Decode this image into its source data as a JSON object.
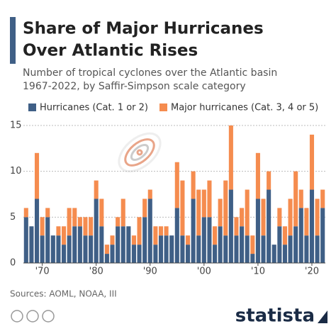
{
  "chart_data": {
    "type": "stacked_bar",
    "title": [
      "Share of Major Hurricanes",
      "Over Atlantic Rises"
    ],
    "subtitle": [
      "Number of tropical cyclones over the Atlantic basin",
      "1967-2022, by Saffir-Simpson scale category"
    ],
    "categories": [
      null,
      null,
      null,
      "'70",
      null,
      null,
      null,
      null,
      null,
      null,
      null,
      null,
      null,
      "'80",
      null,
      null,
      null,
      null,
      null,
      null,
      null,
      null,
      null,
      "'90",
      null,
      null,
      null,
      null,
      null,
      null,
      null,
      null,
      null,
      "'00",
      null,
      null,
      null,
      null,
      null,
      null,
      null,
      null,
      null,
      "'10",
      null,
      null,
      null,
      null,
      null,
      null,
      null,
      null,
      null,
      "'20",
      null,
      null
    ],
    "series": [
      {
        "name": "Hurricanes (Cat. 1 or 2)",
        "color": "#3f5f86",
        "values": [
          5,
          4,
          7,
          3,
          5,
          3,
          3,
          2,
          3,
          4,
          4,
          3,
          3,
          7,
          4,
          1,
          2,
          4,
          4,
          4,
          2,
          2,
          5,
          7,
          2,
          3,
          3,
          3,
          6,
          3,
          2,
          7,
          3,
          5,
          5,
          2,
          4,
          3,
          8,
          3,
          4,
          3,
          1,
          7,
          3,
          8,
          2,
          4,
          2,
          3,
          4,
          6,
          3,
          8,
          3,
          6
        ]
      },
      {
        "name": "Major hurricanes (Cat. 3, 4 or 5)",
        "color": "#f58c4f",
        "values": [
          1,
          0,
          5,
          2,
          1,
          0,
          1,
          2,
          3,
          2,
          1,
          2,
          2,
          2,
          3,
          1,
          1,
          1,
          3,
          0,
          1,
          3,
          2,
          1,
          2,
          1,
          1,
          0,
          5,
          6,
          1,
          3,
          5,
          3,
          4,
          2,
          3,
          6,
          7,
          2,
          2,
          5,
          2,
          5,
          4,
          2,
          0,
          2,
          2,
          4,
          6,
          2,
          3,
          6,
          4,
          2
        ]
      }
    ],
    "ylim": [
      0,
      15
    ],
    "yticks": [
      0,
      5,
      10,
      15
    ],
    "grid": true,
    "source": "Sources: AOML, NOAA, III",
    "brand": "statista"
  }
}
